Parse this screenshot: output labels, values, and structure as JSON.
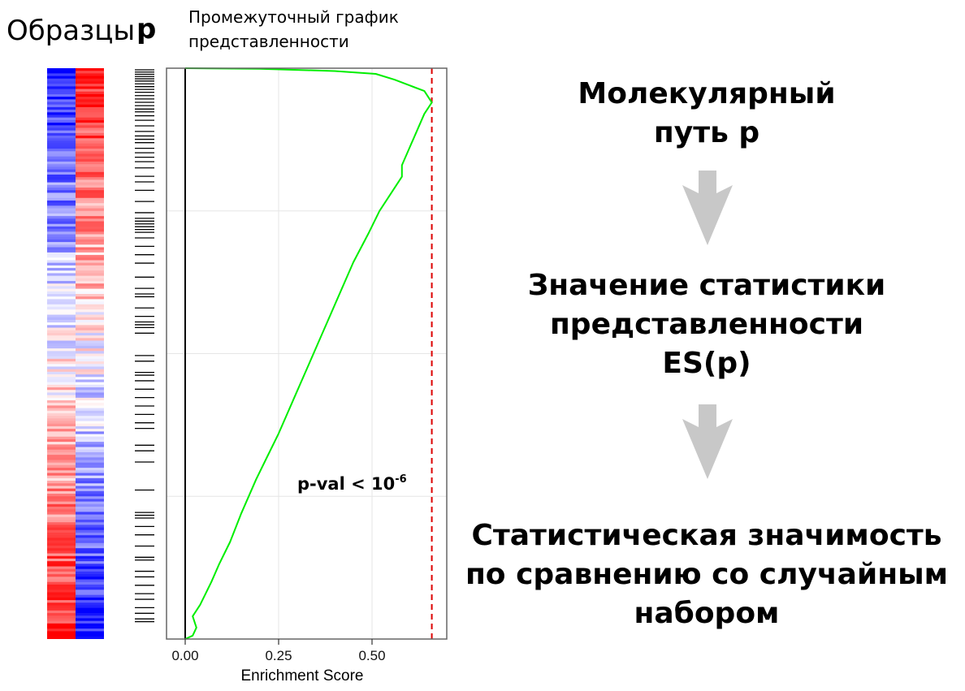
{
  "labels": {
    "samples": "Образцы",
    "pathway_letter": "p",
    "plot_title_line1": "Промежуточный график",
    "plot_title_line2": "представленности"
  },
  "chart_data": {
    "type": "line",
    "orientation": "vertical",
    "xlabel": "Enrichment Score",
    "x_ticks": [
      "0.00",
      "0.25",
      "0.50"
    ],
    "xlim": [
      -0.05,
      0.7
    ],
    "ylim": [
      0,
      1
    ],
    "es_max": 0.66,
    "annotation": {
      "text": "p-val < 10",
      "superscript": "-6"
    },
    "series": [
      {
        "color": "#00ee00",
        "points": [
          [
            0.0,
            0.0
          ],
          [
            0.02,
            0.006
          ],
          [
            0.03,
            0.02
          ],
          [
            0.02,
            0.04
          ],
          [
            0.04,
            0.06
          ],
          [
            0.07,
            0.1
          ],
          [
            0.09,
            0.13
          ],
          [
            0.12,
            0.17
          ],
          [
            0.15,
            0.22
          ],
          [
            0.19,
            0.28
          ],
          [
            0.22,
            0.32
          ],
          [
            0.25,
            0.36
          ],
          [
            0.29,
            0.42
          ],
          [
            0.33,
            0.48
          ],
          [
            0.37,
            0.54
          ],
          [
            0.41,
            0.6
          ],
          [
            0.45,
            0.66
          ],
          [
            0.49,
            0.71
          ],
          [
            0.52,
            0.75
          ],
          [
            0.55,
            0.78
          ],
          [
            0.58,
            0.81
          ],
          [
            0.58,
            0.83
          ],
          [
            0.6,
            0.86
          ],
          [
            0.62,
            0.89
          ],
          [
            0.64,
            0.92
          ],
          [
            0.66,
            0.94
          ],
          [
            0.64,
            0.96
          ],
          [
            0.6,
            0.97
          ],
          [
            0.56,
            0.98
          ],
          [
            0.51,
            0.99
          ],
          [
            0.4,
            0.995
          ],
          [
            0.2,
            0.999
          ],
          [
            0.0,
            1.0
          ]
        ]
      }
    ],
    "vlines": [
      {
        "x": 0.0,
        "color": "#000000",
        "style": "solid"
      },
      {
        "x": 0.66,
        "color": "#dd0000",
        "style": "dashed"
      }
    ],
    "grid": true
  },
  "heatmap": {
    "low_color": "#0000ff",
    "mid_color": "#ffffff",
    "high_color": "#ff0000",
    "columns": 2
  },
  "hit_positions": [
    0.0,
    0.004,
    0.008,
    0.012,
    0.016,
    0.02,
    0.025,
    0.03,
    0.035,
    0.04,
    0.046,
    0.052,
    0.058,
    0.064,
    0.07,
    0.075,
    0.082,
    0.09,
    0.1,
    0.11,
    0.118,
    0.124,
    0.13,
    0.14,
    0.148,
    0.156,
    0.164,
    0.175,
    0.19,
    0.2,
    0.215,
    0.235,
    0.255,
    0.265,
    0.27,
    0.275,
    0.28,
    0.285,
    0.29,
    0.3,
    0.315,
    0.33,
    0.345,
    0.37,
    0.39,
    0.4,
    0.405,
    0.425,
    0.44,
    0.45,
    0.455,
    0.46,
    0.47,
    0.51,
    0.52,
    0.54,
    0.545,
    0.555,
    0.57,
    0.585,
    0.6,
    0.615,
    0.63,
    0.64,
    0.67,
    0.68,
    0.7,
    0.75,
    0.79,
    0.795,
    0.8,
    0.815,
    0.83,
    0.85,
    0.87,
    0.875,
    0.895,
    0.905,
    0.92,
    0.935,
    0.945,
    0.96,
    0.97,
    0.98,
    0.985
  ],
  "steps": {
    "step1": [
      "Молекулярный",
      "путь p"
    ],
    "step2": [
      "Значение статистики",
      "представленности",
      "ES(p)"
    ],
    "step3": [
      "Статистическая значимость",
      "по сравнению со случайным",
      "набором"
    ]
  },
  "arrow_color": "#c8c8c8"
}
